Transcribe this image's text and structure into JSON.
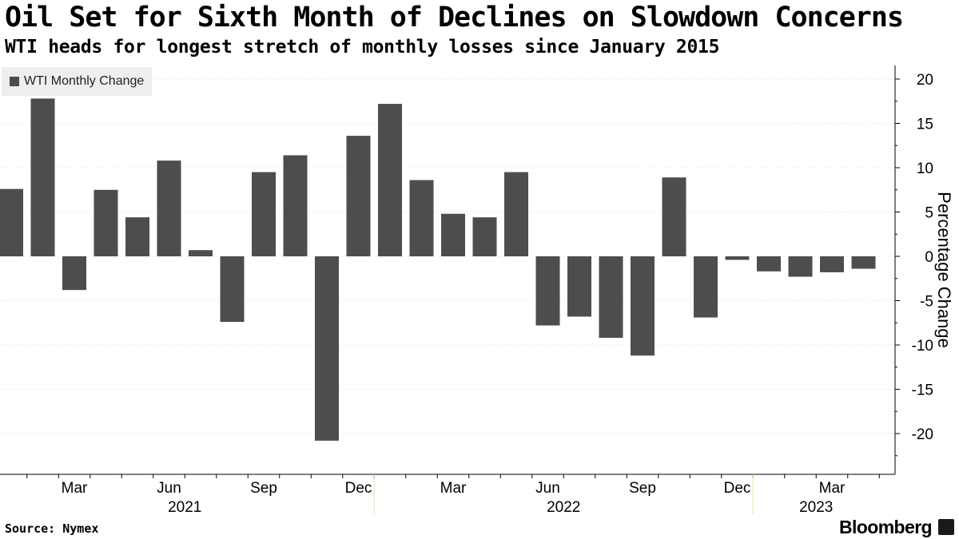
{
  "header": {
    "title": "Oil Set for Sixth Month of Declines on Slowdown Concerns",
    "subtitle": "WTI heads for longest stretch of monthly losses since January 2015"
  },
  "footer": {
    "source": "Source: Nymex",
    "brand": "Bloomberg"
  },
  "colors": {
    "bar": "#4d4d4d",
    "grid": "#d9eab0",
    "legend_bg": "#eeeeee"
  },
  "chart_data": {
    "type": "bar",
    "categories": [
      "2021-01",
      "2021-02",
      "2021-03",
      "2021-04",
      "2021-05",
      "2021-06",
      "2021-07",
      "2021-08",
      "2021-09",
      "2021-10",
      "2021-11",
      "2021-12",
      "2022-01",
      "2022-02",
      "2022-03",
      "2022-04",
      "2022-05",
      "2022-06",
      "2022-07",
      "2022-08",
      "2022-09",
      "2022-10",
      "2022-11",
      "2022-12",
      "2023-01",
      "2023-02",
      "2023-03",
      "2023-04"
    ],
    "series": [
      {
        "name": "WTI Monthly Change",
        "values": [
          7.6,
          17.8,
          -3.8,
          7.5,
          4.4,
          10.8,
          0.7,
          -7.4,
          9.5,
          11.4,
          -20.8,
          13.6,
          17.2,
          8.6,
          4.8,
          4.4,
          9.5,
          -7.8,
          -6.8,
          -9.2,
          -11.2,
          8.9,
          -6.9,
          -0.4,
          -1.7,
          -2.3,
          -1.8,
          -1.4
        ]
      }
    ],
    "ylabel": "Percentage Change",
    "ylim": [
      -24,
      22
    ],
    "yticks": [
      20,
      15,
      10,
      5,
      0,
      -5,
      -10,
      -15,
      -20
    ],
    "ytick_labels": [
      "20",
      "15",
      "10",
      "5",
      "0",
      "-5",
      "-10",
      "-15",
      "-20"
    ],
    "xtick_labels": [
      {
        "index": 2,
        "label": "Mar"
      },
      {
        "index": 5,
        "label": "Jun"
      },
      {
        "index": 8,
        "label": "Sep"
      },
      {
        "index": 11,
        "label": "Dec"
      },
      {
        "index": 14,
        "label": "Mar"
      },
      {
        "index": 17,
        "label": "Jun"
      },
      {
        "index": 20,
        "label": "Sep"
      },
      {
        "index": 23,
        "label": "Dec"
      },
      {
        "index": 26,
        "label": "Mar"
      }
    ],
    "year_labels": [
      {
        "year": "2021",
        "center_index": 5.5
      },
      {
        "year": "2022",
        "center_index": 17.5
      },
      {
        "year": "2023",
        "center_index": 25.5
      }
    ],
    "year_boundaries": [
      11.5,
      23.5
    ],
    "grid": true,
    "grid_style": "dotted-horizontal",
    "legend_position": "top-left",
    "y_axis_side": "right"
  }
}
